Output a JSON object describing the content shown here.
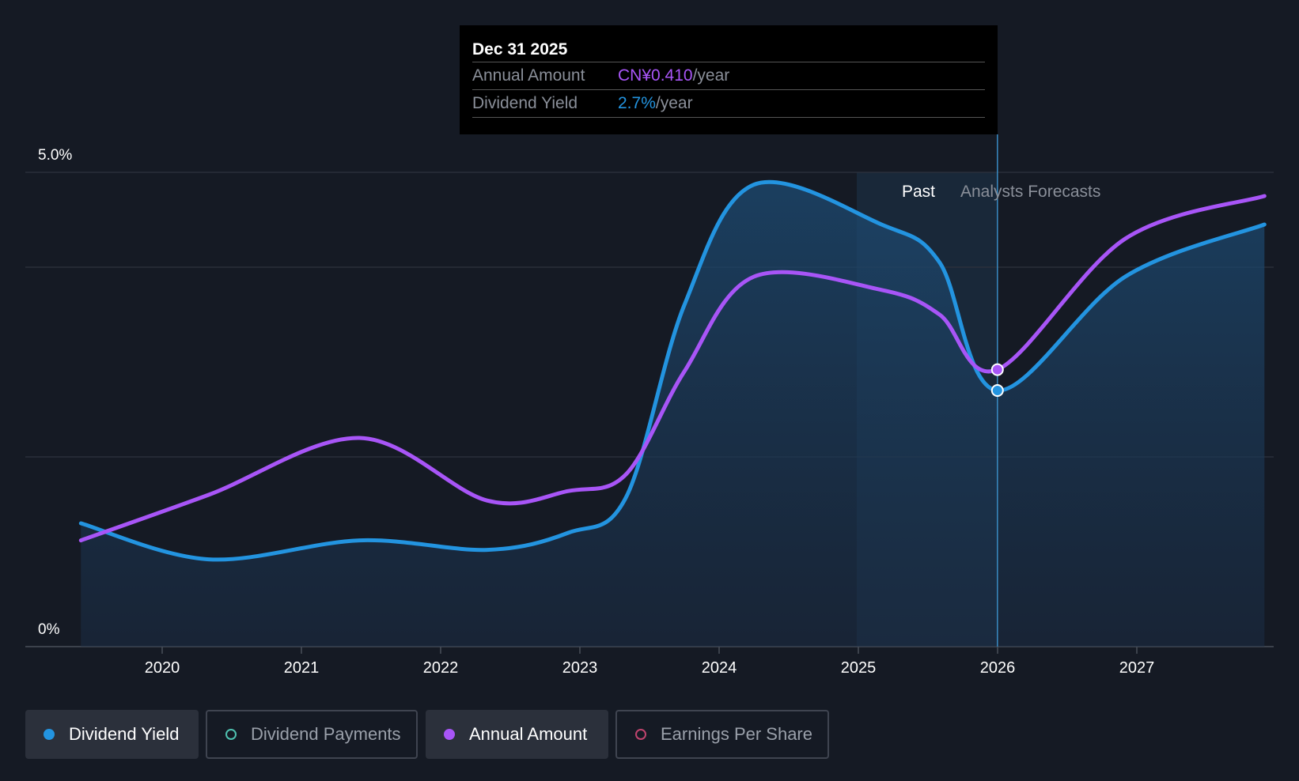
{
  "tooltip": {
    "date": "Dec 31 2025",
    "rows": [
      {
        "label": "Annual Amount",
        "value": "CN¥0.410",
        "unit": "/year",
        "color": "#a855f7"
      },
      {
        "label": "Dividend Yield",
        "value": "2.7%",
        "unit": "/year",
        "color": "#2394e0"
      }
    ]
  },
  "regions": {
    "past": "Past",
    "forecast": "Analysts Forecasts"
  },
  "legend": [
    {
      "label": "Dividend Yield",
      "color": "#2394e0",
      "active": true
    },
    {
      "label": "Dividend Payments",
      "color": "#4fc1b0",
      "active": false
    },
    {
      "label": "Annual Amount",
      "color": "#a855f7",
      "active": true
    },
    {
      "label": "Earnings Per Share",
      "color": "#c0446e",
      "active": false
    }
  ],
  "chart_data": {
    "type": "line",
    "ylim": [
      0,
      5.0
    ],
    "y_tick_labels": [
      "5.0%",
      "0%"
    ],
    "x_ticks": [
      "2020",
      "2021",
      "2022",
      "2023",
      "2024",
      "2025",
      "2026",
      "2027"
    ],
    "gridlines": [
      0,
      2.0,
      4.0,
      5.0
    ],
    "series": [
      {
        "name": "Dividend Yield",
        "color": "#2394e0",
        "filled": true,
        "points": [
          [
            "2019-06",
            1.3
          ],
          [
            "2020-05",
            0.92
          ],
          [
            "2021-06",
            1.12
          ],
          [
            "2022-05",
            1.02
          ],
          [
            "2022-12",
            1.2
          ],
          [
            "2023-05",
            1.58
          ],
          [
            "2023-10",
            3.6
          ],
          [
            "2024-04",
            4.87
          ],
          [
            "2025-03",
            4.45
          ],
          [
            "2025-08",
            4.05
          ],
          [
            "2025-12-31",
            2.7
          ],
          [
            "2026-12",
            3.9
          ],
          [
            "2027-12",
            4.45
          ]
        ]
      },
      {
        "name": "Annual Amount",
        "color": "#a855f7",
        "filled": false,
        "points": [
          [
            "2019-06",
            1.12
          ],
          [
            "2020-05",
            1.6
          ],
          [
            "2021-06",
            2.2
          ],
          [
            "2022-05",
            1.54
          ],
          [
            "2022-12",
            1.64
          ],
          [
            "2023-05",
            1.82
          ],
          [
            "2023-10",
            2.9
          ],
          [
            "2024-04",
            3.9
          ],
          [
            "2025-03",
            3.76
          ],
          [
            "2025-08",
            3.5
          ],
          [
            "2025-12-31",
            2.92
          ],
          [
            "2026-12",
            4.3
          ],
          [
            "2027-12",
            4.75
          ]
        ]
      }
    ],
    "highlight_date": "2025-12-31"
  }
}
